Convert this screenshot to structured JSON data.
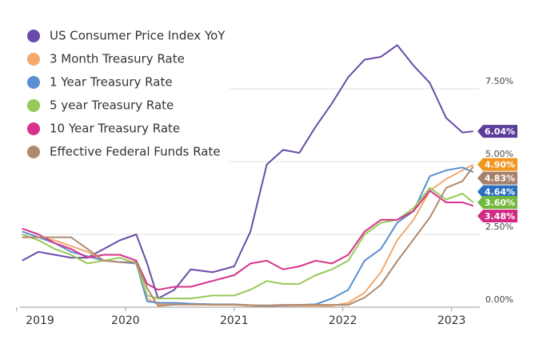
{
  "chart_data": {
    "type": "line",
    "x": [
      2019.05,
      2019.2,
      2019.35,
      2019.5,
      2019.65,
      2019.8,
      2019.95,
      2020.1,
      2020.2,
      2020.3,
      2020.45,
      2020.6,
      2020.8,
      2021.0,
      2021.15,
      2021.3,
      2021.45,
      2021.6,
      2021.75,
      2021.9,
      2022.05,
      2022.2,
      2022.35,
      2022.5,
      2022.65,
      2022.8,
      2022.95,
      2023.1,
      2023.2
    ],
    "xlim": [
      2019.03,
      2023.26
    ],
    "xticks": [
      2019,
      2020,
      2021,
      2022,
      2023
    ],
    "ylim": [
      0,
      10
    ],
    "yticks": [
      {
        "value": 0,
        "label": "0.00%"
      },
      {
        "value": 2.5,
        "label": "2.50%"
      },
      {
        "value": 5,
        "label": "5.00%"
      },
      {
        "value": 7.5,
        "label": "7.50%"
      }
    ],
    "grid": true,
    "legend": "top-left",
    "series": [
      {
        "name": "US Consumer Price Index YoY",
        "color": "#6a4ca8",
        "label_color": "#5b3d99",
        "values": [
          1.6,
          1.9,
          1.8,
          1.7,
          1.7,
          2.0,
          2.3,
          2.5,
          1.5,
          0.3,
          0.6,
          1.3,
          1.2,
          1.4,
          2.6,
          4.9,
          5.4,
          5.3,
          6.2,
          7.0,
          7.9,
          8.5,
          8.6,
          9.0,
          8.3,
          7.7,
          6.5,
          6.0,
          6.04
        ],
        "value_labels": [
          null,
          null,
          null,
          null,
          null,
          null,
          null,
          null,
          null,
          null,
          null,
          null,
          null,
          null,
          null,
          null,
          null,
          null,
          null,
          null,
          null,
          null,
          null,
          null,
          null,
          null,
          null,
          null,
          "6.04%"
        ]
      },
      {
        "name": "3 Month Treasury Rate",
        "color": "#f5a86e",
        "label_color": "#f0961e",
        "values": [
          2.4,
          2.4,
          2.3,
          2.1,
          1.9,
          1.6,
          1.55,
          1.5,
          0.3,
          0.1,
          0.1,
          0.1,
          0.08,
          0.08,
          0.05,
          0.02,
          0.05,
          0.05,
          0.05,
          0.05,
          0.15,
          0.5,
          1.2,
          2.3,
          3.0,
          4.0,
          4.4,
          4.7,
          4.9
        ],
        "value_labels": [
          null,
          null,
          null,
          null,
          null,
          null,
          null,
          null,
          null,
          null,
          null,
          null,
          null,
          null,
          null,
          null,
          null,
          null,
          null,
          null,
          null,
          null,
          null,
          null,
          null,
          null,
          null,
          null,
          "4.90%"
        ]
      },
      {
        "name": "1 Year Treasury Rate",
        "color": "#5b8fd1",
        "label_color": "#2a6fc0",
        "values": [
          2.6,
          2.4,
          2.2,
          1.9,
          1.75,
          1.6,
          1.55,
          1.5,
          0.2,
          0.15,
          0.15,
          0.12,
          0.1,
          0.1,
          0.07,
          0.05,
          0.07,
          0.08,
          0.1,
          0.3,
          0.6,
          1.6,
          2.0,
          2.9,
          3.3,
          4.5,
          4.7,
          4.8,
          4.64
        ],
        "value_labels": [
          null,
          null,
          null,
          null,
          null,
          null,
          null,
          null,
          null,
          null,
          null,
          null,
          null,
          null,
          null,
          null,
          null,
          null,
          null,
          null,
          null,
          null,
          null,
          null,
          null,
          null,
          null,
          null,
          "4.64%"
        ]
      },
      {
        "name": "5 year Treasury Rate",
        "color": "#96c95a",
        "label_color": "#74b83e",
        "values": [
          2.5,
          2.3,
          2.0,
          1.8,
          1.5,
          1.6,
          1.7,
          1.5,
          0.4,
          0.3,
          0.3,
          0.3,
          0.4,
          0.4,
          0.6,
          0.9,
          0.8,
          0.8,
          1.1,
          1.3,
          1.6,
          2.5,
          2.9,
          3.0,
          3.4,
          4.1,
          3.7,
          3.9,
          3.6
        ],
        "value_labels": [
          null,
          null,
          null,
          null,
          null,
          null,
          null,
          null,
          null,
          null,
          null,
          null,
          null,
          null,
          null,
          null,
          null,
          null,
          null,
          null,
          null,
          null,
          null,
          null,
          null,
          null,
          null,
          null,
          "3.60%"
        ]
      },
      {
        "name": "10 Year Treasury Rate",
        "color": "#d6338a",
        "label_color": "#d02a85",
        "values": [
          2.7,
          2.5,
          2.2,
          2.0,
          1.7,
          1.8,
          1.8,
          1.6,
          0.8,
          0.6,
          0.7,
          0.7,
          0.9,
          1.1,
          1.5,
          1.6,
          1.3,
          1.4,
          1.6,
          1.5,
          1.8,
          2.6,
          3.0,
          3.0,
          3.3,
          4.0,
          3.6,
          3.6,
          3.48
        ],
        "value_labels": [
          null,
          null,
          null,
          null,
          null,
          null,
          null,
          null,
          null,
          null,
          null,
          null,
          null,
          null,
          null,
          null,
          null,
          null,
          null,
          null,
          null,
          null,
          null,
          null,
          null,
          null,
          null,
          null,
          "3.48%"
        ]
      },
      {
        "name": "Effective Federal Funds Rate",
        "color": "#b08a6e",
        "label_color": "#a5806a",
        "values": [
          2.4,
          2.4,
          2.4,
          2.4,
          2.0,
          1.6,
          1.55,
          1.55,
          0.65,
          0.05,
          0.09,
          0.09,
          0.09,
          0.09,
          0.07,
          0.06,
          0.08,
          0.08,
          0.08,
          0.08,
          0.08,
          0.33,
          0.77,
          1.58,
          2.33,
          3.08,
          4.1,
          4.33,
          4.83
        ],
        "value_labels": [
          null,
          null,
          null,
          null,
          null,
          null,
          null,
          null,
          null,
          null,
          null,
          null,
          null,
          null,
          null,
          null,
          null,
          null,
          null,
          null,
          null,
          null,
          null,
          null,
          null,
          null,
          null,
          null,
          "4.83%"
        ]
      }
    ]
  }
}
